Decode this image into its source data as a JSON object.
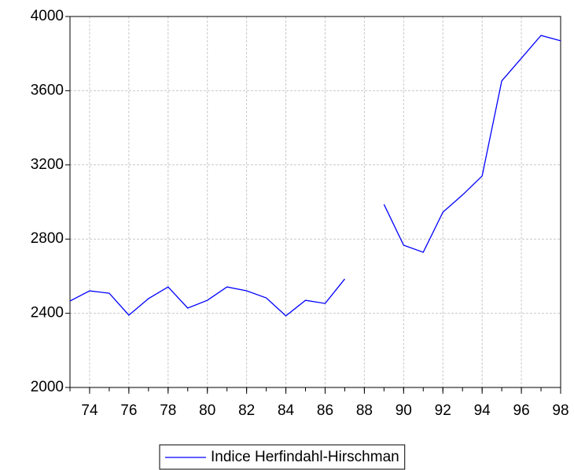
{
  "chart_data": {
    "type": "line",
    "x": [
      73,
      74,
      75,
      76,
      77,
      78,
      79,
      80,
      81,
      82,
      83,
      84,
      85,
      86,
      87,
      88,
      89,
      90,
      91,
      92,
      93,
      94,
      95,
      96,
      97,
      98
    ],
    "series": [
      {
        "name": "Indice Herfindahl-Hirschman",
        "color": "#0000ff",
        "values": [
          2466,
          2521,
          2508,
          2390,
          2479,
          2542,
          2428,
          2470,
          2542,
          2521,
          2483,
          2386,
          2470,
          2453,
          2585,
          null,
          2987,
          2767,
          2729,
          2945,
          3038,
          3140,
          3653,
          3775,
          3898,
          3869
        ]
      }
    ],
    "xlim": [
      73,
      98
    ],
    "xticks": [
      74,
      76,
      78,
      80,
      82,
      84,
      86,
      88,
      90,
      92,
      94,
      96,
      98
    ],
    "ylim": [
      2000,
      4000
    ],
    "yticks": [
      2000,
      2400,
      2800,
      3200,
      3600,
      4000
    ],
    "grid": true,
    "legend": "bottom"
  }
}
